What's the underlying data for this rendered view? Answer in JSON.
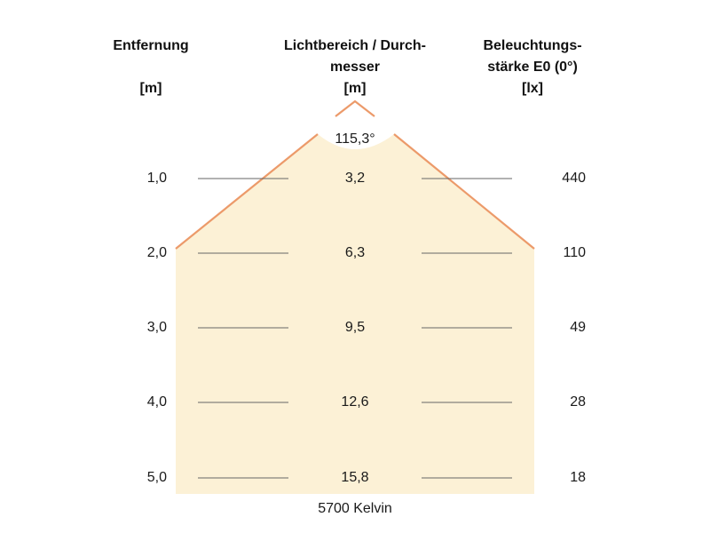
{
  "headers": {
    "distance": {
      "line1": "Entfernung",
      "unit": "[m]"
    },
    "diameter": {
      "line1": "Lichtbereich / Durch-",
      "line2": "messer",
      "unit": "[m]"
    },
    "illuminance": {
      "line1": "Beleuchtungs-",
      "line2": "stärke E0 (0°)",
      "unit": "[lx]"
    }
  },
  "beam_angle": "115,3°",
  "rows": [
    {
      "distance": "1,0",
      "diameter": "3,2",
      "illuminance": "440"
    },
    {
      "distance": "2,0",
      "diameter": "6,3",
      "illuminance": "110"
    },
    {
      "distance": "3,0",
      "diameter": "9,5",
      "illuminance": "49"
    },
    {
      "distance": "4,0",
      "diameter": "12,6",
      "illuminance": "28"
    },
    {
      "distance": "5,0",
      "diameter": "15,8",
      "illuminance": "18"
    }
  ],
  "color_temperature": "5700 Kelvin",
  "colors": {
    "light_fill": "#fcf1d6",
    "beam_edge": "#ec9a6a",
    "row_line": "#666666"
  }
}
